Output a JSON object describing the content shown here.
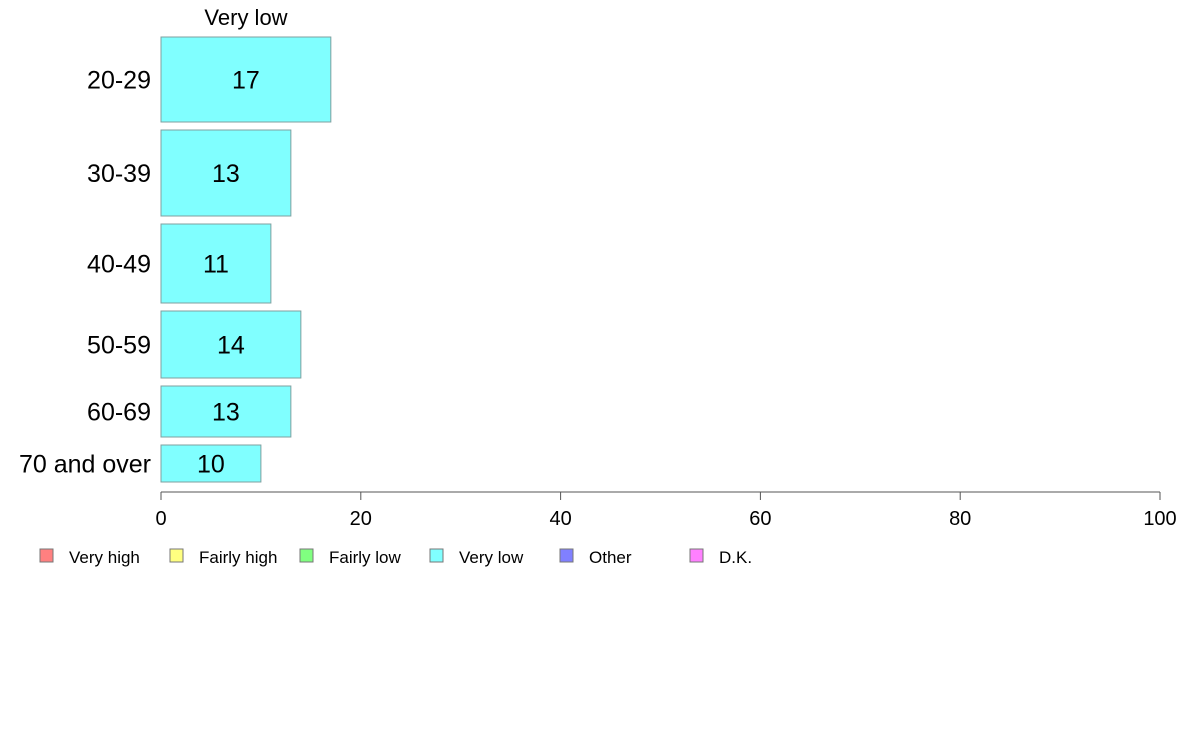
{
  "chart_data": {
    "type": "bar",
    "orientation": "horizontal",
    "title": "Very low",
    "categories": [
      "20-29",
      "30-39",
      "40-49",
      "50-59",
      "60-69",
      "70 and over"
    ],
    "series": [
      {
        "name": "Very low",
        "values": [
          17,
          13,
          11,
          14,
          13,
          10
        ],
        "color": "#80ffff"
      }
    ],
    "value_labels": [
      "17",
      "13",
      "11",
      "14",
      "13",
      "10"
    ],
    "xlim": [
      0,
      100
    ],
    "x_ticks": [
      "0",
      "20",
      "40",
      "60",
      "80",
      "100"
    ],
    "grid": false,
    "legend_position": "bottom",
    "legend": [
      {
        "label": "Very high",
        "color": "#ff8080"
      },
      {
        "label": "Fairly high",
        "color": "#ffff80"
      },
      {
        "label": "Fairly low",
        "color": "#80ff80"
      },
      {
        "label": "Very low",
        "color": "#80ffff"
      },
      {
        "label": "Other",
        "color": "#8080ff"
      },
      {
        "label": "D.K.",
        "color": "#ff80ff"
      }
    ]
  }
}
